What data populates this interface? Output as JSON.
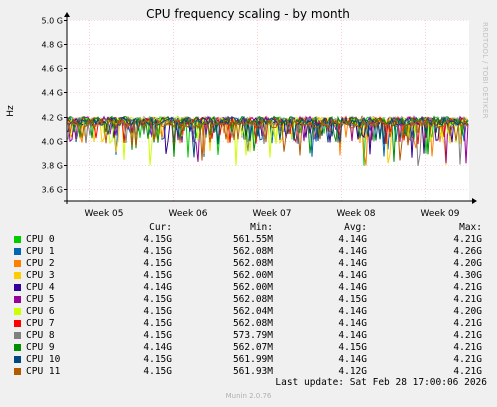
{
  "chart_data": {
    "type": "line",
    "title": "CPU frequency scaling - by month",
    "ylabel": "Hz",
    "xlabel": "",
    "ylim": [
      3.5,
      5.0
    ],
    "y_unit_suffix": " G",
    "y_ticks": [
      "5.0 G",
      "4.8 G",
      "4.6 G",
      "4.4 G",
      "4.2 G",
      "4.0 G",
      "3.8 G",
      "3.6 G"
    ],
    "y_tick_values": [
      5.0,
      4.8,
      4.6,
      4.4,
      4.2,
      4.0,
      3.8,
      3.6
    ],
    "x_ticks": [
      "Week 05",
      "Week 06",
      "Week 07",
      "Week 08",
      "Week 09"
    ],
    "grid": true,
    "series": [
      {
        "name": "CPU 0",
        "color": "#00cc00"
      },
      {
        "name": "CPU 1",
        "color": "#0066b3"
      },
      {
        "name": "CPU 2",
        "color": "#ff8000"
      },
      {
        "name": "CPU 3",
        "color": "#ffcc00"
      },
      {
        "name": "CPU 4",
        "color": "#330099"
      },
      {
        "name": "CPU 5",
        "color": "#990099"
      },
      {
        "name": "CPU 6",
        "color": "#ccff00"
      },
      {
        "name": "CPU 7",
        "color": "#ff0000"
      },
      {
        "name": "CPU 8",
        "color": "#808080"
      },
      {
        "name": "CPU 9",
        "color": "#008f00"
      },
      {
        "name": "CPU 10",
        "color": "#00487d"
      },
      {
        "name": "CPU 11",
        "color": "#b35a00"
      }
    ]
  },
  "legend": {
    "headers": {
      "cur": "Cur:",
      "min": "Min:",
      "avg": "Avg:",
      "max": "Max:"
    },
    "rows": [
      {
        "name": "CPU 0",
        "cur": "4.15G",
        "min": "561.55M",
        "avg": "4.14G",
        "max": "4.21G"
      },
      {
        "name": "CPU 1",
        "cur": "4.15G",
        "min": "562.08M",
        "avg": "4.14G",
        "max": "4.26G"
      },
      {
        "name": "CPU 2",
        "cur": "4.15G",
        "min": "562.08M",
        "avg": "4.14G",
        "max": "4.20G"
      },
      {
        "name": "CPU 3",
        "cur": "4.15G",
        "min": "562.00M",
        "avg": "4.14G",
        "max": "4.30G"
      },
      {
        "name": "CPU 4",
        "cur": "4.14G",
        "min": "562.00M",
        "avg": "4.14G",
        "max": "4.21G"
      },
      {
        "name": "CPU 5",
        "cur": "4.15G",
        "min": "562.08M",
        "avg": "4.15G",
        "max": "4.21G"
      },
      {
        "name": "CPU 6",
        "cur": "4.15G",
        "min": "562.04M",
        "avg": "4.14G",
        "max": "4.20G"
      },
      {
        "name": "CPU 7",
        "cur": "4.15G",
        "min": "562.08M",
        "avg": "4.14G",
        "max": "4.21G"
      },
      {
        "name": "CPU 8",
        "cur": "4.15G",
        "min": "573.79M",
        "avg": "4.14G",
        "max": "4.21G"
      },
      {
        "name": "CPU 9",
        "cur": "4.14G",
        "min": "562.07M",
        "avg": "4.15G",
        "max": "4.21G"
      },
      {
        "name": "CPU 10",
        "cur": "4.15G",
        "min": "561.99M",
        "avg": "4.14G",
        "max": "4.21G"
      },
      {
        "name": "CPU 11",
        "cur": "4.15G",
        "min": "561.93M",
        "avg": "4.12G",
        "max": "4.21G"
      }
    ]
  },
  "last_update": "Last update: Sat Feb 28 17:00:06 2026",
  "footer": "Munin 2.0.76",
  "side_text": "RRDTOOL / TOBI OETIKER"
}
